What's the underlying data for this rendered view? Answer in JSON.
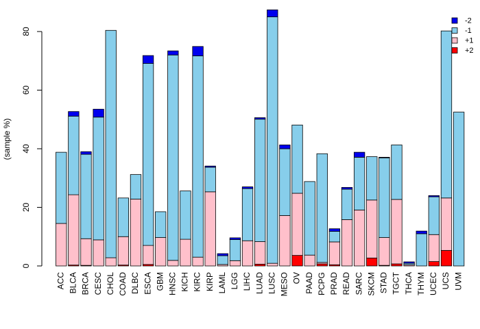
{
  "chart_data": {
    "type": "bar",
    "stacked": true,
    "ylabel": "(sample %)",
    "xlabel": "",
    "ylim": [
      0,
      88
    ],
    "yticks": [
      0,
      20,
      40,
      60,
      80
    ],
    "categories": [
      "ACC",
      "BLCA",
      "BRCA",
      "CESC",
      "CHOL",
      "COAD",
      "DLBC",
      "ESCA",
      "GBM",
      "HNSC",
      "KICH",
      "KIRC",
      "KIRP",
      "LAML",
      "LGG",
      "LIHC",
      "LUAD",
      "LUSC",
      "MESO",
      "OV",
      "PAAD",
      "PCPG",
      "PRAD",
      "READ",
      "SARC",
      "SKCM",
      "STAD",
      "TGCT",
      "THCA",
      "THYM",
      "UCEC",
      "UCS",
      "UVM"
    ],
    "stack_order": [
      "+2",
      "+1",
      "-1",
      "-2"
    ],
    "series": [
      {
        "name": "+2",
        "color": "#ff0000",
        "values": [
          0,
          0.3,
          0.2,
          0,
          0,
          0.3,
          0,
          0.5,
          0,
          0,
          0,
          0,
          0,
          0,
          0,
          0,
          0.6,
          0,
          0,
          3.6,
          0,
          0.7,
          0.4,
          0,
          0,
          2.7,
          0.2,
          0.7,
          0,
          0,
          1.5,
          5.3,
          0
        ]
      },
      {
        "name": "+1",
        "color": "#ffc0cb",
        "values": [
          14.5,
          24,
          9.1,
          8.9,
          2.8,
          9.7,
          22.8,
          6.5,
          9.7,
          1.9,
          9.1,
          3,
          25.3,
          0.5,
          1.8,
          8.6,
          7.7,
          0.9,
          17.2,
          21.2,
          3.7,
          0.5,
          7.8,
          15.8,
          19.1,
          19.8,
          9.5,
          22,
          0.4,
          0,
          9.2,
          17.9,
          0
        ]
      },
      {
        "name": "-1",
        "color": "#87ceeb",
        "values": [
          24.3,
          26.8,
          28.8,
          41.9,
          77.6,
          13.2,
          8.4,
          62.1,
          8.8,
          70.1,
          16.5,
          68.7,
          8.4,
          3,
          7.2,
          17.8,
          41.8,
          84.1,
          22.8,
          23.3,
          25.1,
          37.1,
          3.6,
          10.4,
          18,
          14.8,
          27.2,
          18.6,
          0.5,
          11,
          12.9,
          57,
          52.5
        ]
      },
      {
        "name": "-2",
        "color": "#0000ee",
        "values": [
          0,
          1.6,
          0.9,
          2.7,
          0,
          0,
          0,
          2.7,
          0,
          1.4,
          0,
          3.2,
          0.4,
          0.7,
          0.6,
          0.6,
          0.5,
          2.4,
          1.3,
          0,
          0,
          0,
          0.9,
          0.6,
          1.7,
          0,
          0.2,
          0,
          0.5,
          0.9,
          0.4,
          0,
          0
        ]
      }
    ],
    "legend": {
      "position": "top-right",
      "entries": [
        "-2",
        "-1",
        "+1",
        "+2"
      ]
    }
  }
}
